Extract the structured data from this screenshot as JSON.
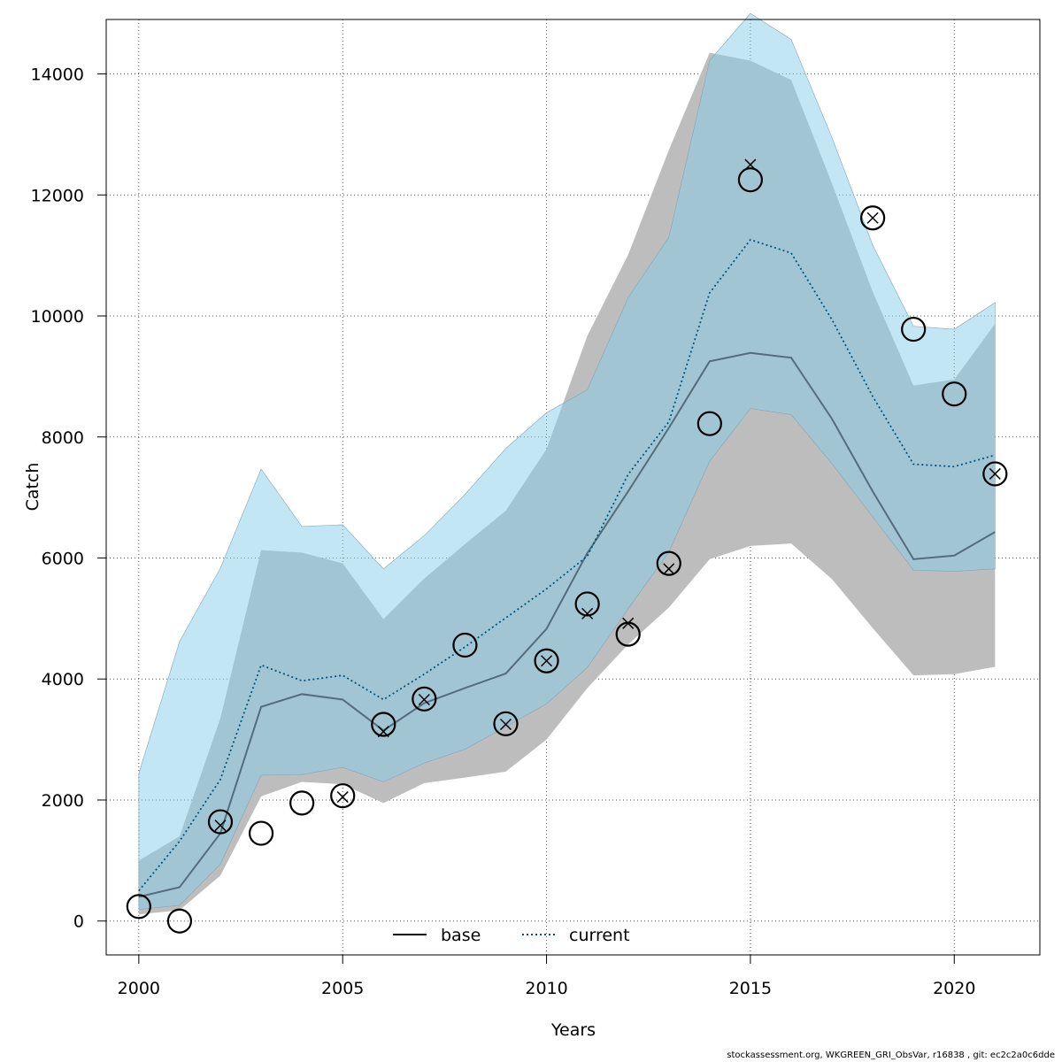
{
  "chart_data": {
    "type": "line",
    "xlabel": "Years",
    "ylabel": "Catch",
    "xlim": [
      1999.2,
      2022.1
    ],
    "ylim": [
      -560,
      14900
    ],
    "xticks": [
      2000,
      2005,
      2010,
      2015,
      2020
    ],
    "yticks": [
      0,
      2000,
      4000,
      6000,
      8000,
      10000,
      12000,
      14000
    ],
    "grid": true,
    "legend_position": "bottom-center",
    "x": [
      2000,
      2001,
      2002,
      2003,
      2004,
      2005,
      2006,
      2007,
      2008,
      2009,
      2010,
      2011,
      2012,
      2013,
      2014,
      2015,
      2016,
      2017,
      2018,
      2019,
      2020,
      2021
    ],
    "series": [
      {
        "name": "base",
        "color": "#000000",
        "line_style": "solid",
        "band_color": "#bdbdbd",
        "values": [
          400,
          560,
          1450,
          3540,
          3750,
          3660,
          3150,
          3600,
          3850,
          4090,
          4830,
          6080,
          7100,
          8150,
          9250,
          9390,
          9310,
          8300,
          7100,
          5980,
          6040,
          6430
        ],
        "lower": [
          110,
          180,
          750,
          2060,
          2300,
          2260,
          1950,
          2280,
          2370,
          2470,
          3000,
          3850,
          4570,
          5180,
          5980,
          6200,
          6240,
          5650,
          4840,
          4060,
          4080,
          4200
        ],
        "upper": [
          1000,
          1400,
          3350,
          6130,
          6090,
          5910,
          4990,
          5660,
          6230,
          6780,
          7800,
          9670,
          11010,
          12740,
          14350,
          14220,
          13900,
          12190,
          10400,
          8850,
          8950,
          9870
        ]
      },
      {
        "name": "current",
        "color": "#00557f",
        "line_style": "dotted",
        "band_color": "#87ceeb",
        "values": [
          500,
          1320,
          2340,
          4230,
          3970,
          4060,
          3660,
          4080,
          4530,
          5010,
          5490,
          6030,
          7380,
          8250,
          10380,
          11260,
          11040,
          9940,
          8670,
          7550,
          7510,
          7700
        ],
        "lower": [
          190,
          260,
          940,
          2410,
          2420,
          2540,
          2300,
          2610,
          2840,
          3210,
          3590,
          4190,
          5160,
          6100,
          7600,
          8470,
          8370,
          7560,
          6680,
          5800,
          5780,
          5820
        ],
        "upper": [
          2440,
          4620,
          5830,
          7470,
          6520,
          6550,
          5820,
          6370,
          7050,
          7810,
          8400,
          8780,
          10300,
          11300,
          14220,
          15000,
          14570,
          12950,
          11170,
          9830,
          9780,
          10220
        ]
      }
    ],
    "observations_base": [
      {
        "x": 2000,
        "y": 240
      },
      {
        "x": 2001,
        "y": 0
      },
      {
        "x": 2002,
        "y": 1640
      },
      {
        "x": 2003,
        "y": 1450
      },
      {
        "x": 2004,
        "y": 1950
      },
      {
        "x": 2005,
        "y": 2070
      },
      {
        "x": 2006,
        "y": 3250
      },
      {
        "x": 2007,
        "y": 3670
      },
      {
        "x": 2008,
        "y": 4560
      },
      {
        "x": 2009,
        "y": 3260
      },
      {
        "x": 2010,
        "y": 4300
      },
      {
        "x": 2011,
        "y": 5240
      },
      {
        "x": 2012,
        "y": 4740
      },
      {
        "x": 2013,
        "y": 5910
      },
      {
        "x": 2014,
        "y": 8220
      },
      {
        "x": 2015,
        "y": 12250
      },
      {
        "x": 2018,
        "y": 11620
      },
      {
        "x": 2019,
        "y": 9780
      },
      {
        "x": 2020,
        "y": 8710
      },
      {
        "x": 2021,
        "y": 7390
      }
    ],
    "observations_current": [
      {
        "x": 2002,
        "y": 1580
      },
      {
        "x": 2005,
        "y": 2050
      },
      {
        "x": 2006,
        "y": 3130
      },
      {
        "x": 2007,
        "y": 3660
      },
      {
        "x": 2009,
        "y": 3250
      },
      {
        "x": 2010,
        "y": 4300
      },
      {
        "x": 2011,
        "y": 5080
      },
      {
        "x": 2012,
        "y": 4920
      },
      {
        "x": 2013,
        "y": 5820
      },
      {
        "x": 2015,
        "y": 12500
      },
      {
        "x": 2018,
        "y": 11620
      },
      {
        "x": 2021,
        "y": 7390
      }
    ]
  },
  "footer": "stockassessment.org, WKGREEN_GRI_ObsVar, r16838 , git: ec2c2a0c6dde"
}
